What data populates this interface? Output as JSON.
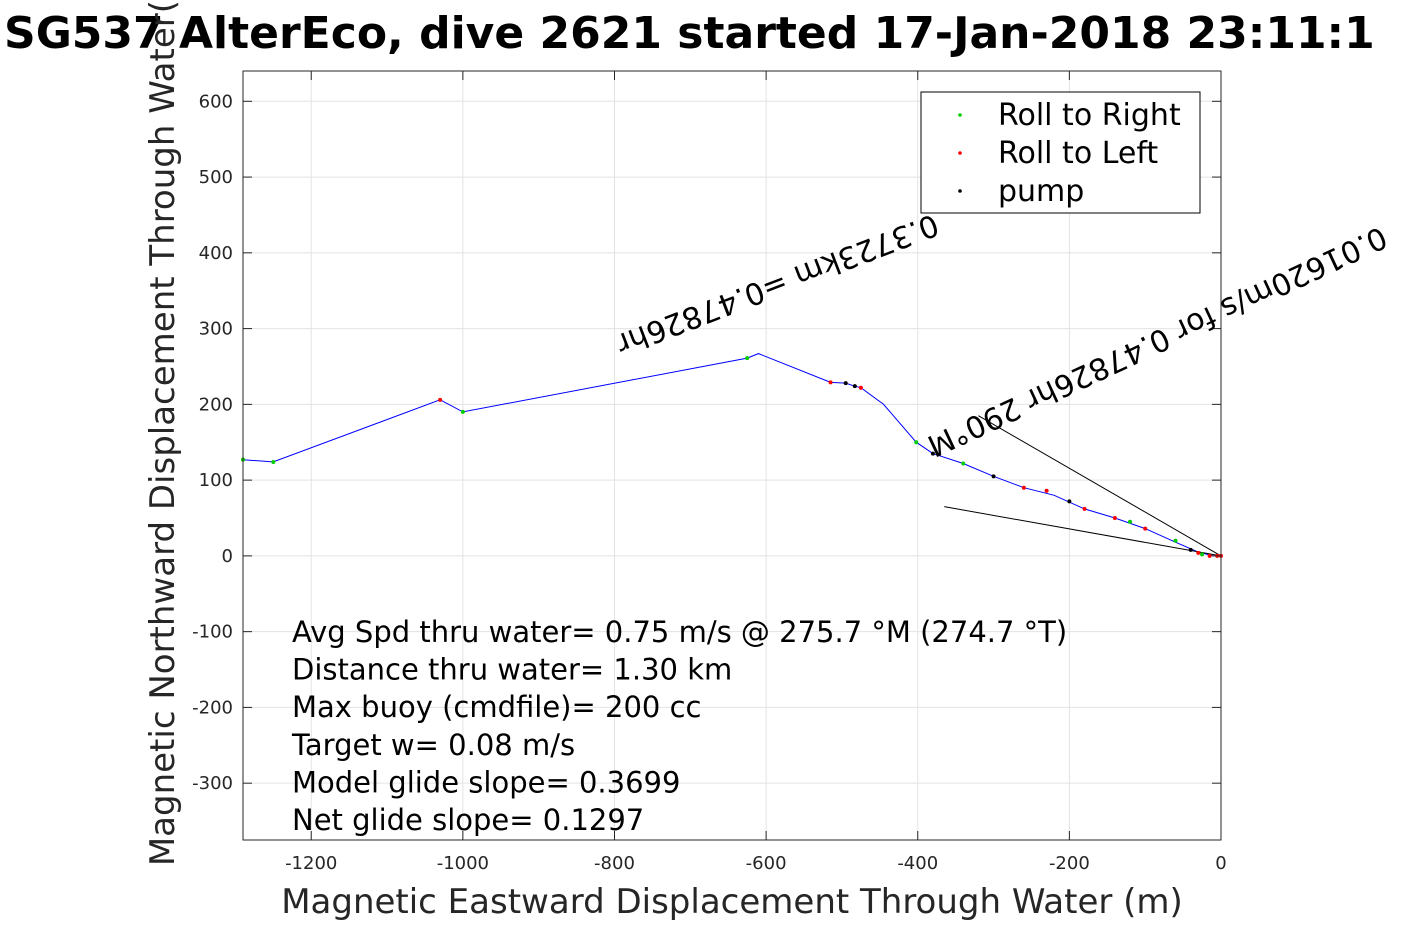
{
  "chart_data": {
    "type": "line",
    "title": "SG537 AlterEco, dive 2621 started 17-Jan-2018 23:11:1",
    "xlabel": "Magnetic Eastward Displacement Through Water (m)",
    "ylabel": "Magnetic Northward Displacement Through Water(",
    "xlim": [
      -1290,
      0
    ],
    "ylim": [
      -375,
      640
    ],
    "x_ticks": [
      -1200,
      -1000,
      -800,
      -600,
      -400,
      -200,
      0
    ],
    "y_ticks": [
      -300,
      -200,
      -100,
      0,
      100,
      200,
      300,
      400,
      500,
      600
    ],
    "x_tick_labels": [
      "-1200",
      "-1000",
      "-800",
      "-600",
      "-400",
      "-200",
      "0"
    ],
    "y_tick_labels": [
      "-300",
      "-200",
      "-100",
      "0",
      "100",
      "200",
      "300",
      "400",
      "500",
      "600"
    ],
    "grid": true,
    "legend_position": "top-right",
    "colors": {
      "track": "#0000ff",
      "roll_right": "#00cc00",
      "roll_left": "#ff0000",
      "pump": "#000000",
      "current_lines": "#000000"
    },
    "track": {
      "name": "track",
      "x": [
        -1290,
        -1250,
        -1030,
        -1000,
        -625,
        -610,
        -515,
        -495,
        -483,
        -475,
        -445,
        -402,
        -380,
        -340,
        -300,
        -260,
        -220,
        -180,
        -140,
        -100,
        -60,
        -30,
        -10,
        0
      ],
      "y": [
        127,
        124,
        206,
        190,
        261,
        267,
        229,
        228,
        224,
        222,
        200,
        150,
        135,
        122,
        105,
        90,
        80,
        62,
        50,
        36,
        18,
        5,
        0,
        0
      ]
    },
    "series": [
      {
        "name": "Roll to Right",
        "x": [
          -1290,
          -1250,
          -1000,
          -625,
          -402,
          -340,
          -120,
          -60,
          -25
        ],
        "y": [
          127,
          124,
          190,
          261,
          150,
          122,
          45,
          20,
          2
        ]
      },
      {
        "name": "Roll to Left",
        "x": [
          -1030,
          -515,
          -475,
          -260,
          -230,
          -180,
          -140,
          -100,
          -30,
          -15,
          -5,
          0
        ],
        "y": [
          206,
          229,
          222,
          90,
          86,
          62,
          50,
          36,
          4,
          0,
          0,
          0
        ]
      },
      {
        "name": "pump",
        "x": [
          -495,
          -483,
          -380,
          -300,
          -200,
          -40
        ],
        "y": [
          228,
          224,
          135,
          105,
          72,
          8
        ]
      }
    ],
    "current_lines": [
      {
        "x": [
          -320,
          0
        ],
        "y": [
          185,
          0
        ]
      },
      {
        "x": [
          -365,
          0
        ],
        "y": [
          65,
          0
        ]
      }
    ],
    "annotations_rotated": [
      {
        "text": "0.3723km =0.47826hr",
        "x": -800,
        "y": 290,
        "angle_deg": 159
      },
      {
        "text": "0.01620m/s for 0.47826hr 290°M",
        "x": -390,
        "y": 155,
        "angle_deg": 155
      }
    ],
    "stats_text": [
      "Avg Spd thru water=  0.75 m/s @ 275.7 °M (274.7 °T)",
      "Distance thru water=  1.30 km",
      "Max buoy (cmdfile)= 200 cc",
      "Target w= 0.08 m/s",
      "Model glide slope= 0.3699",
      "Net glide slope= 0.1297"
    ]
  }
}
